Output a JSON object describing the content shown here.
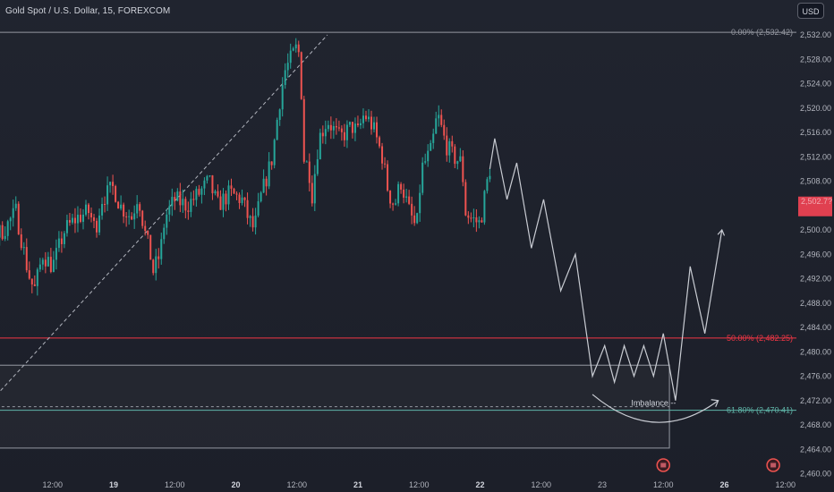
{
  "header": {
    "title": "Gold Spot / U.S. Dollar, 15, FOREXCOM",
    "currency": "USD"
  },
  "colors": {
    "background": "#1e222d",
    "up_candle": "#26a69a",
    "down_candle": "#ef5350",
    "projection": "#c9ccd3",
    "fib_0": "#9598a1",
    "fib_50": "#f23645",
    "fib_618": "#5fb5a8",
    "zone_border": "#9598a1",
    "last_price_bg": "#e04050"
  },
  "chart_data": {
    "type": "candlestick",
    "symbol": "XAUUSD",
    "timeframe": "15",
    "ylim": [
      2458,
      2534
    ],
    "y_ticks": [
      "2,460.00",
      "2,464.00",
      "2,468.00",
      "2,472.00",
      "2,476.00",
      "2,480.00",
      "2,484.00",
      "2,488.00",
      "2,492.00",
      "2,496.00",
      "2,500.00",
      "2,504.00",
      "2,508.00",
      "2,512.00",
      "2,516.00",
      "2,520.00",
      "2,524.00",
      "2,528.00",
      "2,532.00"
    ],
    "x_ticks": [
      {
        "label": "12:00",
        "t": 0.5,
        "bold": false
      },
      {
        "label": "19",
        "t": 1.0,
        "bold": true
      },
      {
        "label": "12:00",
        "t": 1.5,
        "bold": false
      },
      {
        "label": "20",
        "t": 2.0,
        "bold": true
      },
      {
        "label": "12:00",
        "t": 2.5,
        "bold": false
      },
      {
        "label": "21",
        "t": 3.0,
        "bold": true
      },
      {
        "label": "12:00",
        "t": 3.5,
        "bold": false
      },
      {
        "label": "22",
        "t": 4.0,
        "bold": true
      },
      {
        "label": "12:00",
        "t": 4.5,
        "bold": false
      },
      {
        "label": "23",
        "t": 5.0,
        "bold": false
      },
      {
        "label": "12:00",
        "t": 5.5,
        "bold": false
      },
      {
        "label": "26",
        "t": 6.0,
        "bold": true
      },
      {
        "label": "12:00",
        "t": 6.5,
        "bold": false
      }
    ],
    "price_path": [
      [
        -0.55,
        2460
      ],
      [
        -0.45,
        2465
      ],
      [
        -0.4,
        2472
      ],
      [
        -0.33,
        2495
      ],
      [
        -0.28,
        2497
      ],
      [
        -0.2,
        2499
      ],
      [
        -0.1,
        2505
      ],
      [
        -0.05,
        2498
      ],
      [
        0.1,
        2500
      ],
      [
        0.2,
        2503
      ],
      [
        0.3,
        2493
      ],
      [
        0.35,
        2490
      ],
      [
        0.42,
        2496
      ],
      [
        0.5,
        2494
      ],
      [
        0.6,
        2500
      ],
      [
        0.7,
        2502
      ],
      [
        0.8,
        2503
      ],
      [
        0.85,
        2500
      ],
      [
        0.9,
        2505
      ],
      [
        1.0,
        2507
      ],
      [
        1.05,
        2504
      ],
      [
        1.15,
        2502
      ],
      [
        1.2,
        2506
      ],
      [
        1.25,
        2500
      ],
      [
        1.3,
        2496
      ],
      [
        1.32,
        2493
      ],
      [
        1.38,
        2496
      ],
      [
        1.42,
        2502
      ],
      [
        1.5,
        2505
      ],
      [
        1.6,
        2504
      ],
      [
        1.7,
        2506
      ],
      [
        1.78,
        2508
      ],
      [
        1.85,
        2504
      ],
      [
        1.95,
        2506
      ],
      [
        2.05,
        2505
      ],
      [
        2.1,
        2502
      ],
      [
        2.15,
        2500
      ],
      [
        2.2,
        2505
      ],
      [
        2.3,
        2512
      ],
      [
        2.35,
        2520
      ],
      [
        2.4,
        2526
      ],
      [
        2.45,
        2528
      ],
      [
        2.5,
        2530
      ],
      [
        2.53,
        2528
      ],
      [
        2.55,
        2512
      ],
      [
        2.6,
        2510
      ],
      [
        2.62,
        2505
      ],
      [
        2.68,
        2515
      ],
      [
        2.75,
        2518
      ],
      [
        2.85,
        2515
      ],
      [
        2.95,
        2517
      ],
      [
        3.0,
        2516
      ],
      [
        3.05,
        2519
      ],
      [
        3.12,
        2517
      ],
      [
        3.2,
        2512
      ],
      [
        3.25,
        2506
      ],
      [
        3.3,
        2504
      ],
      [
        3.35,
        2508
      ],
      [
        3.42,
        2503
      ],
      [
        3.48,
        2500
      ],
      [
        3.52,
        2510
      ],
      [
        3.6,
        2513
      ],
      [
        3.65,
        2519
      ],
      [
        3.72,
        2514
      ],
      [
        3.78,
        2512
      ],
      [
        3.85,
        2511
      ],
      [
        3.88,
        2503
      ],
      [
        3.92,
        2502
      ],
      [
        4.0,
        2501
      ],
      [
        4.05,
        2507
      ],
      [
        4.08,
        2510
      ]
    ],
    "projection": [
      [
        4.08,
        2510
      ],
      [
        4.12,
        2515
      ],
      [
        4.22,
        2505
      ],
      [
        4.3,
        2511
      ],
      [
        4.42,
        2497
      ],
      [
        4.52,
        2505
      ],
      [
        4.66,
        2490
      ],
      [
        4.78,
        2496
      ],
      [
        4.92,
        2476
      ],
      [
        5.02,
        2481
      ],
      [
        5.1,
        2475
      ],
      [
        5.18,
        2481
      ],
      [
        5.26,
        2476
      ],
      [
        5.34,
        2481
      ],
      [
        5.42,
        2476
      ],
      [
        5.5,
        2483
      ],
      [
        5.6,
        2472
      ],
      [
        5.72,
        2494
      ],
      [
        5.84,
        2483
      ],
      [
        5.98,
        2500
      ]
    ],
    "trendline": [
      [
        -0.55,
        2460
      ],
      [
        2.75,
        2532
      ]
    ],
    "fib_levels": [
      {
        "label": "0.00% (2,532.42)",
        "price": 2532.42,
        "color": "#9598a1"
      },
      {
        "label": "50.00% (2,482.25)",
        "price": 2482.25,
        "color": "#f23645"
      },
      {
        "label": "61.80% (2,470.41)",
        "price": 2470.41,
        "color": "#5fb5a8"
      }
    ],
    "imbalance_zone": {
      "label": "Imbalance",
      "top": 2477.8,
      "bottom": 2464.2,
      "t_start": -0.62,
      "t_end": 5.55
    },
    "imbalance_midline": 2471,
    "curved_arrow": {
      "t_start": 4.92,
      "t_end": 5.95,
      "price_start": 2473,
      "price_end": 2472,
      "price_low": 2467
    },
    "last_price": {
      "text": "2,502.7?",
      "price": 2504
    },
    "event_markers": [
      {
        "t": 5.5,
        "icon": "flag-icon"
      },
      {
        "t": 6.4,
        "icon": "flag-icon"
      }
    ]
  }
}
